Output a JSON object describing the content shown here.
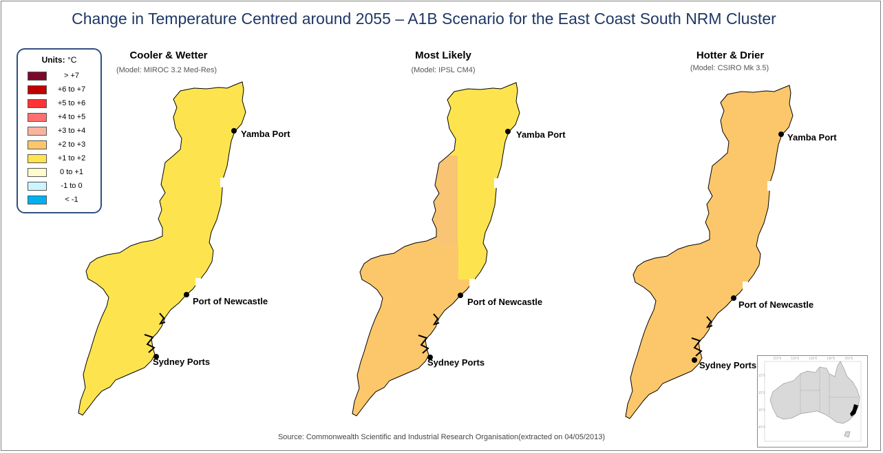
{
  "title": "Change in Temperature Centred around 2055 – A1B Scenario for the East Coast South NRM Cluster",
  "legend": {
    "title": "Units:",
    "unit": "°C",
    "items": [
      {
        "label": "> +7",
        "color": "#7b0a2a"
      },
      {
        "label": "+6 to +7",
        "color": "#c00000"
      },
      {
        "label": "+5 to +6",
        "color": "#ff3333"
      },
      {
        "label": "+4 to +5",
        "color": "#ff7070"
      },
      {
        "label": "+3 to +4",
        "color": "#f8b4a0"
      },
      {
        "label": "+2 to +3",
        "color": "#fcc76a"
      },
      {
        "label": "+1 to +2",
        "color": "#ffe44d"
      },
      {
        "label": "0 to +1",
        "color": "#fffbcc"
      },
      {
        "label": "-1 to 0",
        "color": "#ccf5ff"
      },
      {
        "label": "< -1",
        "color": "#00b0f0"
      }
    ]
  },
  "panels": [
    {
      "title": "Cooler & Wetter",
      "model": "(Model: MIROC 3.2 Med-Res)",
      "fill_range": "+1 to +2",
      "fill": "#fde44f",
      "secondary": "#fde44f"
    },
    {
      "title": "Most Likely",
      "model": "(Model: IPSL CM4)",
      "fill_range": "+2 to +3",
      "fill": "#fcc76a",
      "secondary": "#fde44f"
    },
    {
      "title": "Hotter & Drier",
      "model": "(Model: CSIRO Mk 3.5)",
      "fill_range": "+2 to +3",
      "fill": "#fcc76a",
      "secondary": "#fcc76a"
    }
  ],
  "ports": {
    "yamba": "Yamba Port",
    "newcastle": "Port of Newcastle",
    "sydney": "Sydney Ports"
  },
  "source": "Source: Commonwealth Scientific and Industrial Research Organisation(extracted on 04/05/2013)",
  "inset": {
    "land_color": "#d9d9d9",
    "region_color": "#000000"
  }
}
